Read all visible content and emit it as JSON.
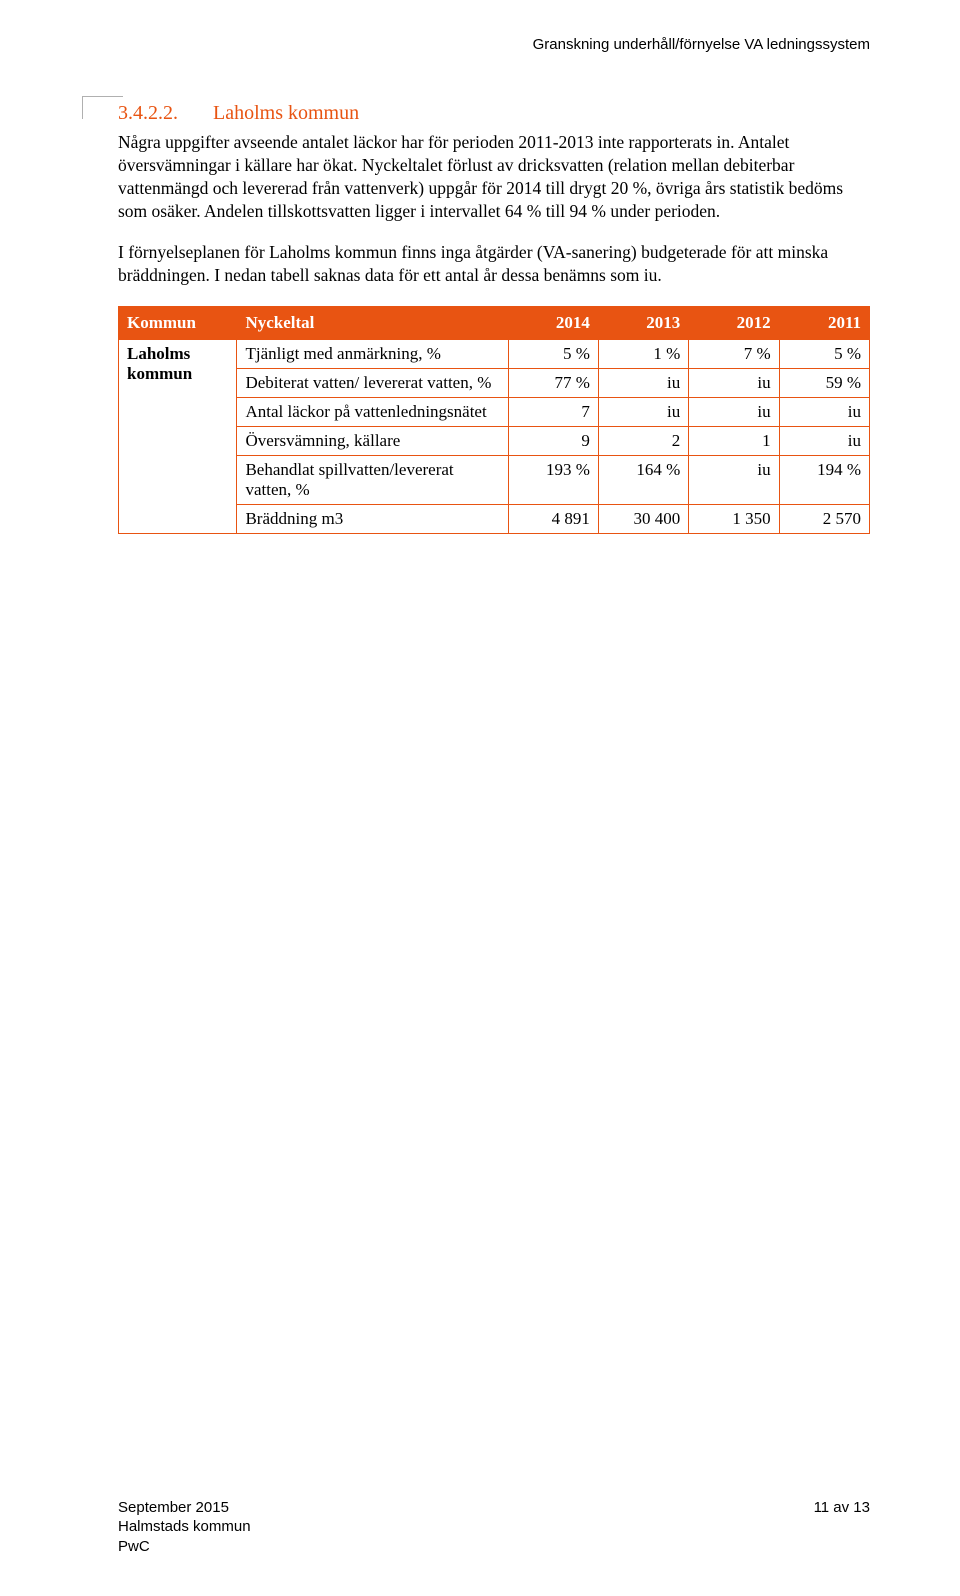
{
  "header_right": "Granskning underhåll/förnyelse VA ledningssystem",
  "heading": {
    "num": "3.4.2.2.",
    "title": "Laholms kommun"
  },
  "paras": {
    "p1": "Några uppgifter avseende antalet läckor har för perioden 2011-2013 inte rapporterats in. Antalet översvämningar i källare har ökat. Nyckeltalet förlust av dricksvatten (relation mellan debiterbar vattenmängd och levererad från vattenverk) uppgår för 2014 till drygt 20 %, övriga års statistik bedöms som osäker. Andelen tillskottsvatten ligger i intervallet 64 % till 94 % under perioden.",
    "p2": "I förnyelseplanen för Laholms kommun finns inga åtgärder (VA-sanering) budgeterade för att minska bräddningen. I nedan tabell saknas data för ett antal år dessa benämns som iu."
  },
  "table": {
    "head": [
      "Kommun",
      "Nyckeltal",
      "2014",
      "2013",
      "2012",
      "2011"
    ],
    "kommun_label": [
      "Laholms",
      "kommun"
    ],
    "rows": [
      {
        "label": "Tjänligt med anmärkning, %",
        "y2014": "5 %",
        "y2013": "1 %",
        "y2012": "7 %",
        "y2011": "5 %"
      },
      {
        "label": "Debiterat vatten/ levererat vatten, %",
        "y2014": "77 %",
        "y2013": "iu",
        "y2012": "iu",
        "y2011": "59 %"
      },
      {
        "label": "Antal läckor på vattenledningsnätet",
        "y2014": "7",
        "y2013": "iu",
        "y2012": "iu",
        "y2011": "iu"
      },
      {
        "label": "Översvämning, källare",
        "y2014": "9",
        "y2013": "2",
        "y2012": "1",
        "y2011": "iu"
      },
      {
        "label": "Behandlat spillvatten/levererat vatten, %",
        "y2014": "193 %",
        "y2013": "164 %",
        "y2012": "iu",
        "y2011": "194 %"
      },
      {
        "label": "Bräddning m3",
        "y2014": "4 891",
        "y2013": "30 400",
        "y2012": "1 350",
        "y2011": "2 570"
      }
    ]
  },
  "footer": {
    "line1": "September 2015",
    "line2": "Halmstads kommun",
    "line3": "PwC",
    "page": "11 av 13"
  },
  "colors": {
    "accent": "#e85412",
    "text": "#000000",
    "bg": "#ffffff"
  }
}
